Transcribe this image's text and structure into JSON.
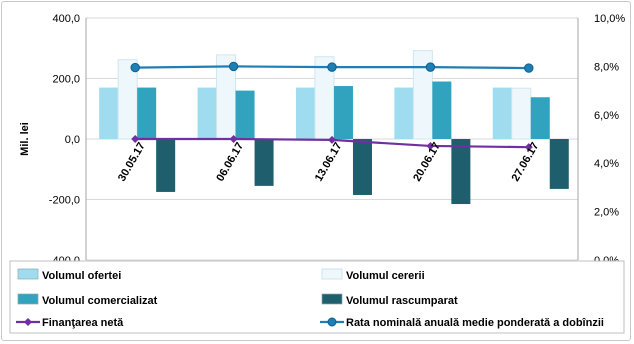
{
  "chart_data": {
    "type": "bar",
    "categories": [
      "30.05.17",
      "06.06.17",
      "13.06.17",
      "20.06.17",
      "27.06.17"
    ],
    "ylabel": "Mil. lei",
    "ylim": [
      -400,
      400
    ],
    "y_ticks": [
      "400,0",
      "200,0",
      "0,0",
      "-200,0",
      "-400,0"
    ],
    "y2lim": [
      0.0,
      10.0
    ],
    "y2_ticks": [
      "10,0%",
      "8,0%",
      "6,0%",
      "4,0%",
      "2,0%",
      "0,0%"
    ],
    "grid": true,
    "legend_position": "bottom",
    "series": [
      {
        "name": "Volumul ofertei",
        "kind": "bar",
        "axis": "left",
        "color": "#9fdcef",
        "values": [
          170,
          170,
          170,
          170,
          170
        ]
      },
      {
        "name": "Volumul cererii",
        "kind": "bar",
        "axis": "left",
        "color": "#eef8fc",
        "values": [
          262,
          278,
          272,
          292,
          168
        ]
      },
      {
        "name": "Volumul comercializat",
        "kind": "bar",
        "axis": "left",
        "color": "#31a3bf",
        "values": [
          170,
          160,
          175,
          190,
          138
        ]
      },
      {
        "name": "Volumul rascumparat",
        "kind": "bar",
        "axis": "left",
        "color": "#1f5e6c",
        "values": [
          -175,
          -155,
          -185,
          -215,
          -165
        ]
      },
      {
        "name": "Finanţarea netă",
        "kind": "line",
        "axis": "left",
        "color": "#7030a0",
        "marker": "diamond",
        "values": [
          0,
          0,
          -3,
          -23,
          -27
        ]
      },
      {
        "name": "Rata nominală anuală medie ponderată a dobînzii",
        "kind": "line",
        "axis": "right",
        "color": "#1f7eb4",
        "marker": "circle",
        "values": [
          7.95,
          8.0,
          7.97,
          7.97,
          7.93
        ]
      }
    ]
  }
}
